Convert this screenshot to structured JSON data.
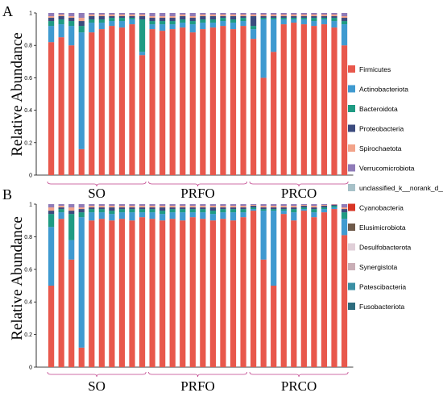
{
  "chart_data": [
    {
      "type": "bar",
      "stacked": true,
      "panel_label": "A",
      "ylabel": "Relative Abundance",
      "ylim": [
        0,
        1
      ],
      "yticks": [
        "0",
        "0.2",
        "0.4",
        "0.6",
        "0.8",
        "1"
      ],
      "groups": [
        {
          "label": "SO",
          "samples": 10
        },
        {
          "label": "PRFO",
          "samples": 10
        },
        {
          "label": "PRCO",
          "samples": 10
        }
      ],
      "samples": [
        {
          "Firmicutes": 0.82,
          "Actinobacteriota": 0.1,
          "Bacteroidota": 0.03,
          "Proteobacteria": 0.02,
          "Spirochaetota": 0.01,
          "Verrucomicrobiota": 0.02
        },
        {
          "Firmicutes": 0.85,
          "Actinobacteriota": 0.08,
          "Bacteroidota": 0.03,
          "Proteobacteria": 0.02,
          "Spirochaetota": 0.01,
          "Verrucomicrobiota": 0.01
        },
        {
          "Firmicutes": 0.8,
          "Actinobacteriota": 0.12,
          "Bacteroidota": 0.03,
          "Proteobacteria": 0.02,
          "Spirochaetota": 0.01,
          "Verrucomicrobiota": 0.02
        },
        {
          "Firmicutes": 0.16,
          "Actinobacteriota": 0.72,
          "Bacteroidota": 0.04,
          "Proteobacteria": 0.03,
          "Spirochaetota": 0.02,
          "Verrucomicrobiota": 0.03
        },
        {
          "Firmicutes": 0.88,
          "Actinobacteriota": 0.06,
          "Bacteroidota": 0.02,
          "Proteobacteria": 0.02,
          "Spirochaetota": 0.01,
          "Verrucomicrobiota": 0.01
        },
        {
          "Firmicutes": 0.9,
          "Actinobacteriota": 0.04,
          "Bacteroidota": 0.02,
          "Proteobacteria": 0.02,
          "Spirochaetota": 0.01,
          "Verrucomicrobiota": 0.01
        },
        {
          "Firmicutes": 0.92,
          "Actinobacteriota": 0.03,
          "Bacteroidota": 0.02,
          "Proteobacteria": 0.01,
          "Spirochaetota": 0.01,
          "Verrucomicrobiota": 0.01
        },
        {
          "Firmicutes": 0.91,
          "Actinobacteriota": 0.04,
          "Bacteroidota": 0.02,
          "Proteobacteria": 0.01,
          "Spirochaetota": 0.01,
          "Verrucomicrobiota": 0.01
        },
        {
          "Firmicutes": 0.93,
          "Actinobacteriota": 0.03,
          "Bacteroidota": 0.01,
          "Proteobacteria": 0.01,
          "Spirochaetota": 0.01,
          "Verrucomicrobiota": 0.01
        },
        {
          "Firmicutes": 0.74,
          "Actinobacteriota": 0.02,
          "Bacteroidota": 0.2,
          "Proteobacteria": 0.02,
          "Spirochaetota": 0.01,
          "Verrucomicrobiota": 0.01
        },
        {
          "Firmicutes": 0.9,
          "Actinobacteriota": 0.03,
          "Bacteroidota": 0.02,
          "Proteobacteria": 0.02,
          "Spirochaetota": 0.01,
          "Verrucomicrobiota": 0.02
        },
        {
          "Firmicutes": 0.89,
          "Actinobacteriota": 0.04,
          "Bacteroidota": 0.02,
          "Proteobacteria": 0.02,
          "Spirochaetota": 0.01,
          "Verrucomicrobiota": 0.02
        },
        {
          "Firmicutes": 0.9,
          "Actinobacteriota": 0.03,
          "Bacteroidota": 0.02,
          "Proteobacteria": 0.02,
          "Spirochaetota": 0.01,
          "Verrucomicrobiota": 0.02
        },
        {
          "Firmicutes": 0.91,
          "Actinobacteriota": 0.03,
          "Bacteroidota": 0.02,
          "Proteobacteria": 0.02,
          "Spirochaetota": 0.01,
          "Verrucomicrobiota": 0.01
        },
        {
          "Firmicutes": 0.88,
          "Actinobacteriota": 0.05,
          "Bacteroidota": 0.02,
          "Proteobacteria": 0.02,
          "Spirochaetota": 0.01,
          "Verrucomicrobiota": 0.02
        },
        {
          "Firmicutes": 0.9,
          "Actinobacteriota": 0.04,
          "Bacteroidota": 0.02,
          "Proteobacteria": 0.02,
          "Spirochaetota": 0.01,
          "Verrucomicrobiota": 0.01
        },
        {
          "Firmicutes": 0.91,
          "Actinobacteriota": 0.03,
          "Bacteroidota": 0.02,
          "Proteobacteria": 0.02,
          "Spirochaetota": 0.01,
          "Verrucomicrobiota": 0.01
        },
        {
          "Firmicutes": 0.92,
          "Actinobacteriota": 0.03,
          "Bacteroidota": 0.02,
          "Proteobacteria": 0.01,
          "Spirochaetota": 0.01,
          "Verrucomicrobiota": 0.01
        },
        {
          "Firmicutes": 0.9,
          "Actinobacteriota": 0.04,
          "Bacteroidota": 0.02,
          "Proteobacteria": 0.02,
          "Spirochaetota": 0.01,
          "Verrucomicrobiota": 0.01
        },
        {
          "Firmicutes": 0.92,
          "Actinobacteriota": 0.03,
          "Bacteroidota": 0.02,
          "Proteobacteria": 0.01,
          "Spirochaetota": 0.01,
          "Verrucomicrobiota": 0.01
        },
        {
          "Firmicutes": 0.84,
          "Actinobacteriota": 0.06,
          "Bacteroidota": 0.02,
          "Proteobacteria": 0.06,
          "Spirochaetota": 0.01,
          "Verrucomicrobiota": 0.01
        },
        {
          "Firmicutes": 0.6,
          "Actinobacteriota": 0.36,
          "Bacteroidota": 0.01,
          "Proteobacteria": 0.01,
          "Spirochaetota": 0.01,
          "Verrucomicrobiota": 0.01
        },
        {
          "Firmicutes": 0.76,
          "Actinobacteriota": 0.2,
          "Bacteroidota": 0.01,
          "Proteobacteria": 0.01,
          "Spirochaetota": 0.01,
          "Verrucomicrobiota": 0.01
        },
        {
          "Firmicutes": 0.93,
          "Actinobacteriota": 0.03,
          "Bacteroidota": 0.01,
          "Proteobacteria": 0.01,
          "Spirochaetota": 0.01,
          "Verrucomicrobiota": 0.01
        },
        {
          "Firmicutes": 0.94,
          "Actinobacteriota": 0.02,
          "Bacteroidota": 0.01,
          "Proteobacteria": 0.01,
          "Spirochaetota": 0.01,
          "Verrucomicrobiota": 0.01
        },
        {
          "Firmicutes": 0.93,
          "Actinobacteriota": 0.03,
          "Bacteroidota": 0.01,
          "Proteobacteria": 0.01,
          "Spirochaetota": 0.01,
          "Verrucomicrobiota": 0.01
        },
        {
          "Firmicutes": 0.92,
          "Actinobacteriota": 0.03,
          "Bacteroidota": 0.02,
          "Proteobacteria": 0.01,
          "Spirochaetota": 0.01,
          "Verrucomicrobiota": 0.01
        },
        {
          "Firmicutes": 0.93,
          "Actinobacteriota": 0.03,
          "Bacteroidota": 0.01,
          "Proteobacteria": 0.01,
          "Spirochaetota": 0.01,
          "Verrucomicrobiota": 0.01
        },
        {
          "Firmicutes": 0.91,
          "Actinobacteriota": 0.04,
          "Bacteroidota": 0.02,
          "Proteobacteria": 0.01,
          "Spirochaetota": 0.01,
          "Verrucomicrobiota": 0.01
        },
        {
          "Firmicutes": 0.8,
          "Actinobacteriota": 0.13,
          "Bacteroidota": 0.02,
          "Proteobacteria": 0.02,
          "Spirochaetota": 0.01,
          "Verrucomicrobiota": 0.02
        }
      ]
    },
    {
      "type": "bar",
      "stacked": true,
      "panel_label": "B",
      "ylabel": "Relative Abundance",
      "ylim": [
        0,
        1
      ],
      "yticks": [
        "0",
        "0.2",
        "0.4",
        "0.6",
        "0.8",
        "1"
      ],
      "groups": [
        {
          "label": "SO",
          "samples": 10
        },
        {
          "label": "PRFO",
          "samples": 10
        },
        {
          "label": "PRCO",
          "samples": 10
        }
      ],
      "samples": [
        {
          "Firmicutes": 0.5,
          "Actinobacteriota": 0.36,
          "Bacteroidota": 0.08,
          "Proteobacteria": 0.02,
          "Spirochaetota": 0.02,
          "Verrucomicrobiota": 0.02
        },
        {
          "Firmicutes": 0.91,
          "Actinobacteriota": 0.04,
          "Bacteroidota": 0.02,
          "Proteobacteria": 0.01,
          "Spirochaetota": 0.01,
          "Verrucomicrobiota": 0.01
        },
        {
          "Firmicutes": 0.66,
          "Actinobacteriota": 0.12,
          "Bacteroidota": 0.16,
          "Proteobacteria": 0.02,
          "Spirochaetota": 0.02,
          "Verrucomicrobiota": 0.02
        },
        {
          "Firmicutes": 0.12,
          "Actinobacteriota": 0.8,
          "Bacteroidota": 0.03,
          "Proteobacteria": 0.02,
          "Spirochaetota": 0.01,
          "Verrucomicrobiota": 0.02
        },
        {
          "Firmicutes": 0.9,
          "Actinobacteriota": 0.05,
          "Bacteroidota": 0.02,
          "Proteobacteria": 0.01,
          "Spirochaetota": 0.01,
          "Verrucomicrobiota": 0.01
        },
        {
          "Firmicutes": 0.91,
          "Actinobacteriota": 0.04,
          "Bacteroidota": 0.02,
          "Proteobacteria": 0.01,
          "Spirochaetota": 0.01,
          "Verrucomicrobiota": 0.01
        },
        {
          "Firmicutes": 0.9,
          "Actinobacteriota": 0.04,
          "Bacteroidota": 0.02,
          "Proteobacteria": 0.02,
          "Spirochaetota": 0.01,
          "Verrucomicrobiota": 0.01
        },
        {
          "Firmicutes": 0.91,
          "Actinobacteriota": 0.04,
          "Bacteroidota": 0.02,
          "Proteobacteria": 0.01,
          "Spirochaetota": 0.01,
          "Verrucomicrobiota": 0.01
        },
        {
          "Firmicutes": 0.9,
          "Actinobacteriota": 0.05,
          "Bacteroidota": 0.02,
          "Proteobacteria": 0.01,
          "Spirochaetota": 0.01,
          "Verrucomicrobiota": 0.01
        },
        {
          "Firmicutes": 0.92,
          "Actinobacteriota": 0.03,
          "Bacteroidota": 0.02,
          "Proteobacteria": 0.01,
          "Spirochaetota": 0.01,
          "Verrucomicrobiota": 0.01
        },
        {
          "Firmicutes": 0.91,
          "Actinobacteriota": 0.04,
          "Bacteroidota": 0.02,
          "Proteobacteria": 0.01,
          "Spirochaetota": 0.01,
          "Verrucomicrobiota": 0.01
        },
        {
          "Firmicutes": 0.9,
          "Actinobacteriota": 0.04,
          "Bacteroidota": 0.02,
          "Proteobacteria": 0.02,
          "Spirochaetota": 0.01,
          "Verrucomicrobiota": 0.01
        },
        {
          "Firmicutes": 0.91,
          "Actinobacteriota": 0.04,
          "Bacteroidota": 0.02,
          "Proteobacteria": 0.01,
          "Spirochaetota": 0.01,
          "Verrucomicrobiota": 0.01
        },
        {
          "Firmicutes": 0.9,
          "Actinobacteriota": 0.05,
          "Bacteroidota": 0.02,
          "Proteobacteria": 0.01,
          "Spirochaetota": 0.01,
          "Verrucomicrobiota": 0.01
        },
        {
          "Firmicutes": 0.92,
          "Actinobacteriota": 0.03,
          "Bacteroidota": 0.02,
          "Proteobacteria": 0.01,
          "Spirochaetota": 0.01,
          "Verrucomicrobiota": 0.01
        },
        {
          "Firmicutes": 0.91,
          "Actinobacteriota": 0.04,
          "Bacteroidota": 0.02,
          "Proteobacteria": 0.01,
          "Spirochaetota": 0.01,
          "Verrucomicrobiota": 0.01
        },
        {
          "Firmicutes": 0.9,
          "Actinobacteriota": 0.04,
          "Bacteroidota": 0.02,
          "Proteobacteria": 0.02,
          "Spirochaetota": 0.01,
          "Verrucomicrobiota": 0.01
        },
        {
          "Firmicutes": 0.91,
          "Actinobacteriota": 0.04,
          "Bacteroidota": 0.02,
          "Proteobacteria": 0.01,
          "Spirochaetota": 0.01,
          "Verrucomicrobiota": 0.01
        },
        {
          "Firmicutes": 0.9,
          "Actinobacteriota": 0.05,
          "Bacteroidota": 0.02,
          "Proteobacteria": 0.01,
          "Spirochaetota": 0.01,
          "Verrucomicrobiota": 0.01
        },
        {
          "Firmicutes": 0.92,
          "Actinobacteriota": 0.03,
          "Bacteroidota": 0.02,
          "Proteobacteria": 0.01,
          "Spirochaetota": 0.01,
          "Verrucomicrobiota": 0.01
        },
        {
          "Firmicutes": 0.96,
          "Actinobacteriota": 0.01,
          "Bacteroidota": 0.01,
          "Proteobacteria": 0.01,
          "Spirochaetota": 0.005,
          "Verrucomicrobiota": 0.005
        },
        {
          "Firmicutes": 0.66,
          "Actinobacteriota": 0.3,
          "Bacteroidota": 0.01,
          "Proteobacteria": 0.01,
          "Spirochaetota": 0.01,
          "Verrucomicrobiota": 0.01
        },
        {
          "Firmicutes": 0.5,
          "Actinobacteriota": 0.46,
          "Bacteroidota": 0.01,
          "Proteobacteria": 0.01,
          "Spirochaetota": 0.01,
          "Verrucomicrobiota": 0.01
        },
        {
          "Firmicutes": 0.94,
          "Actinobacteriota": 0.02,
          "Bacteroidota": 0.01,
          "Proteobacteria": 0.01,
          "Spirochaetota": 0.01,
          "Verrucomicrobiota": 0.01
        },
        {
          "Firmicutes": 0.9,
          "Actinobacteriota": 0.05,
          "Bacteroidota": 0.02,
          "Proteobacteria": 0.01,
          "Spirochaetota": 0.01,
          "Verrucomicrobiota": 0.01
        },
        {
          "Firmicutes": 0.96,
          "Actinobacteriota": 0.01,
          "Bacteroidota": 0.01,
          "Proteobacteria": 0.01,
          "Spirochaetota": 0.005,
          "Verrucomicrobiota": 0.005
        },
        {
          "Firmicutes": 0.92,
          "Actinobacteriota": 0.03,
          "Bacteroidota": 0.02,
          "Proteobacteria": 0.01,
          "Spirochaetota": 0.01,
          "Verrucomicrobiota": 0.01
        },
        {
          "Firmicutes": 0.95,
          "Actinobacteriota": 0.02,
          "Bacteroidota": 0.01,
          "Proteobacteria": 0.01,
          "Spirochaetota": 0.005,
          "Verrucomicrobiota": 0.005
        },
        {
          "Firmicutes": 0.97,
          "Actinobacteriota": 0.01,
          "Bacteroidota": 0.01,
          "Proteobacteria": 0.005,
          "Spirochaetota": 0.0025,
          "Verrucomicrobiota": 0.0025
        },
        {
          "Firmicutes": 0.81,
          "Actinobacteriota": 0.1,
          "Bacteroidota": 0.04,
          "Proteobacteria": 0.02,
          "Spirochaetota": 0.01,
          "Verrucomicrobiota": 0.02
        }
      ]
    }
  ],
  "legend": [
    {
      "name": "Firmicutes",
      "color": "#e8584c"
    },
    {
      "name": "Actinobacteriota",
      "color": "#3f9ad0"
    },
    {
      "name": "Bacteroidota",
      "color": "#1f9b83"
    },
    {
      "name": "Proteobacteria",
      "color": "#3c4b7e"
    },
    {
      "name": "Spirochaetota",
      "color": "#f2a38a"
    },
    {
      "name": "Verrucomicrobiota",
      "color": "#8f7bb8"
    },
    {
      "name": "unclassified_k__norank_d__Bacteria",
      "color": "#a7c1c8"
    },
    {
      "name": "Cyanobacteria",
      "color": "#d83525"
    },
    {
      "name": "Elusimicrobiota",
      "color": "#6f5a4a"
    },
    {
      "name": "Desulfobacterota",
      "color": "#e0cfd8"
    },
    {
      "name": "Synergistota",
      "color": "#c9aeb6"
    },
    {
      "name": "Patescibacteria",
      "color": "#3a8fa4"
    },
    {
      "name": "Fusobacteriota",
      "color": "#2d6c7e"
    }
  ]
}
